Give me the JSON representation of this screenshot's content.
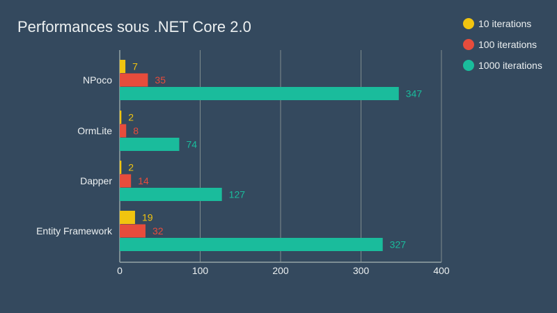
{
  "chart_data": {
    "type": "bar",
    "orientation": "horizontal",
    "title": "Performances sous .NET Core 2.0",
    "categories": [
      "NPoco",
      "OrmLite",
      "Dapper",
      "Entity Framework"
    ],
    "series": [
      {
        "name": "10 iterations",
        "color": "#f1c40f",
        "values": [
          7,
          2,
          2,
          19
        ]
      },
      {
        "name": "100 iterations",
        "color": "#e74c3c",
        "values": [
          35,
          8,
          14,
          32
        ]
      },
      {
        "name": "1000 iterations",
        "color": "#1abc9c",
        "values": [
          347,
          74,
          127,
          327
        ]
      }
    ],
    "xlim": [
      0,
      400
    ],
    "xticks": [
      0,
      100,
      200,
      300,
      400
    ],
    "grid": true,
    "legend_position": "top-right",
    "data_labels": true
  },
  "colors": {
    "background": "#34495e",
    "text": "#ecf0f1",
    "grid": "#7f8c8d",
    "axis": "#95a5a6"
  }
}
